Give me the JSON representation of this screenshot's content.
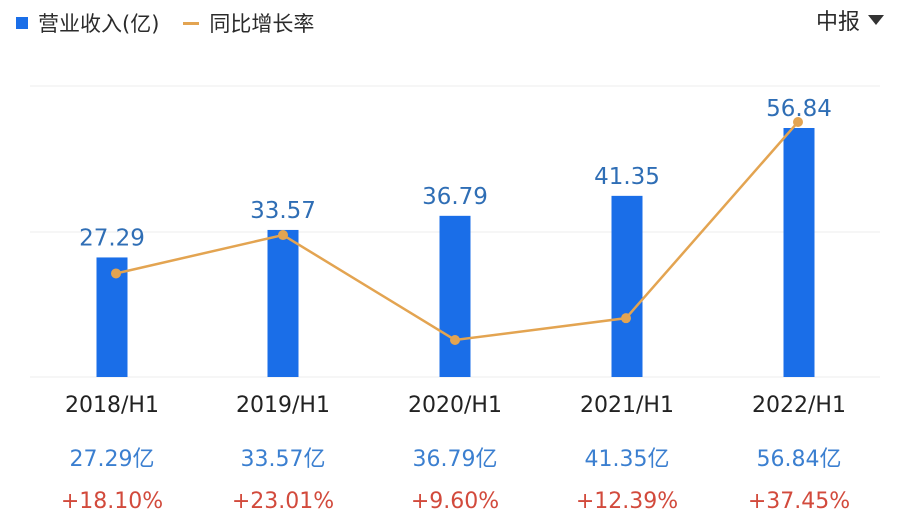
{
  "legend": {
    "bar_label": "营业收入(亿)",
    "line_label": "同比增长率"
  },
  "period_selector": {
    "value": "中报",
    "icon": "caret-down-icon"
  },
  "colors": {
    "bar": "#1a6ee8",
    "line": "#e3a451",
    "bar_value_text": "#2f6eb5",
    "revenue_text": "#3b7fd0",
    "growth_text": "#d24a3c",
    "grid": "#ececec"
  },
  "chart_data": {
    "type": "bar",
    "categories": [
      "2018/H1",
      "2019/H1",
      "2020/H1",
      "2021/H1",
      "2022/H1"
    ],
    "series": [
      {
        "name": "营业收入(亿)",
        "type": "bar",
        "values": [
          27.29,
          33.57,
          36.79,
          41.35,
          56.84
        ],
        "labels": [
          "27.29",
          "33.57",
          "36.79",
          "41.35",
          "56.84"
        ]
      },
      {
        "name": "同比增长率",
        "type": "line",
        "values": [
          18.1,
          23.01,
          9.6,
          12.39,
          37.45
        ]
      }
    ],
    "revenue_labels": [
      "27.29亿",
      "33.57亿",
      "36.79亿",
      "41.35亿",
      "56.84亿"
    ],
    "growth_labels": [
      "+18.10%",
      "+23.01%",
      "+9.60%",
      "+12.39%",
      "+37.45%"
    ],
    "bar_ylim": [
      0,
      60
    ],
    "line_ylim": [
      5,
      40
    ],
    "grid": true,
    "legend_position": "top-left"
  }
}
